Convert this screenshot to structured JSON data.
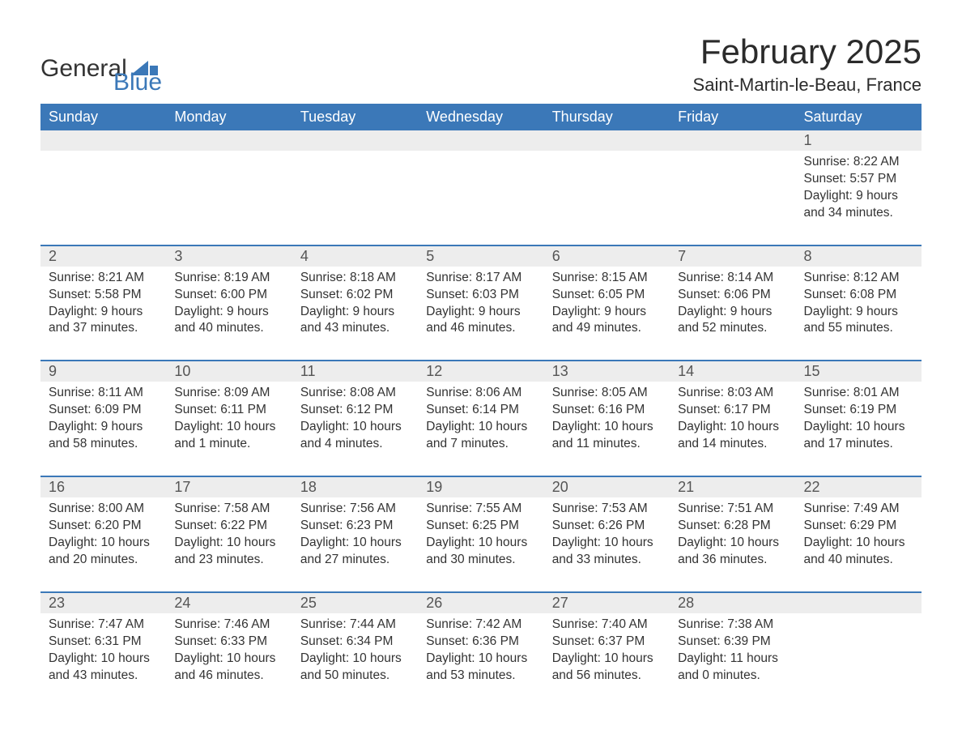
{
  "logo": {
    "text1": "General",
    "text2": "Blue"
  },
  "title": "February 2025",
  "location": "Saint-Martin-le-Beau, France",
  "colors": {
    "header_bg": "#3b78b8",
    "header_text": "#ffffff",
    "daynum_bg": "#ededed",
    "row_divider": "#3b78b8",
    "text": "#333333",
    "background": "#ffffff"
  },
  "typography": {
    "title_fontsize": 42,
    "location_fontsize": 22,
    "header_fontsize": 18,
    "daynum_fontsize": 18,
    "body_fontsize": 15.5
  },
  "layout": {
    "columns": 7,
    "rows": 5,
    "start_day_index": 6
  },
  "day_headers": [
    "Sunday",
    "Monday",
    "Tuesday",
    "Wednesday",
    "Thursday",
    "Friday",
    "Saturday"
  ],
  "weeks": [
    [
      null,
      null,
      null,
      null,
      null,
      null,
      {
        "n": "1",
        "sunrise": "8:22 AM",
        "sunset": "5:57 PM",
        "daylight": "9 hours and 34 minutes."
      }
    ],
    [
      {
        "n": "2",
        "sunrise": "8:21 AM",
        "sunset": "5:58 PM",
        "daylight": "9 hours and 37 minutes."
      },
      {
        "n": "3",
        "sunrise": "8:19 AM",
        "sunset": "6:00 PM",
        "daylight": "9 hours and 40 minutes."
      },
      {
        "n": "4",
        "sunrise": "8:18 AM",
        "sunset": "6:02 PM",
        "daylight": "9 hours and 43 minutes."
      },
      {
        "n": "5",
        "sunrise": "8:17 AM",
        "sunset": "6:03 PM",
        "daylight": "9 hours and 46 minutes."
      },
      {
        "n": "6",
        "sunrise": "8:15 AM",
        "sunset": "6:05 PM",
        "daylight": "9 hours and 49 minutes."
      },
      {
        "n": "7",
        "sunrise": "8:14 AM",
        "sunset": "6:06 PM",
        "daylight": "9 hours and 52 minutes."
      },
      {
        "n": "8",
        "sunrise": "8:12 AM",
        "sunset": "6:08 PM",
        "daylight": "9 hours and 55 minutes."
      }
    ],
    [
      {
        "n": "9",
        "sunrise": "8:11 AM",
        "sunset": "6:09 PM",
        "daylight": "9 hours and 58 minutes."
      },
      {
        "n": "10",
        "sunrise": "8:09 AM",
        "sunset": "6:11 PM",
        "daylight": "10 hours and 1 minute."
      },
      {
        "n": "11",
        "sunrise": "8:08 AM",
        "sunset": "6:12 PM",
        "daylight": "10 hours and 4 minutes."
      },
      {
        "n": "12",
        "sunrise": "8:06 AM",
        "sunset": "6:14 PM",
        "daylight": "10 hours and 7 minutes."
      },
      {
        "n": "13",
        "sunrise": "8:05 AM",
        "sunset": "6:16 PM",
        "daylight": "10 hours and 11 minutes."
      },
      {
        "n": "14",
        "sunrise": "8:03 AM",
        "sunset": "6:17 PM",
        "daylight": "10 hours and 14 minutes."
      },
      {
        "n": "15",
        "sunrise": "8:01 AM",
        "sunset": "6:19 PM",
        "daylight": "10 hours and 17 minutes."
      }
    ],
    [
      {
        "n": "16",
        "sunrise": "8:00 AM",
        "sunset": "6:20 PM",
        "daylight": "10 hours and 20 minutes."
      },
      {
        "n": "17",
        "sunrise": "7:58 AM",
        "sunset": "6:22 PM",
        "daylight": "10 hours and 23 minutes."
      },
      {
        "n": "18",
        "sunrise": "7:56 AM",
        "sunset": "6:23 PM",
        "daylight": "10 hours and 27 minutes."
      },
      {
        "n": "19",
        "sunrise": "7:55 AM",
        "sunset": "6:25 PM",
        "daylight": "10 hours and 30 minutes."
      },
      {
        "n": "20",
        "sunrise": "7:53 AM",
        "sunset": "6:26 PM",
        "daylight": "10 hours and 33 minutes."
      },
      {
        "n": "21",
        "sunrise": "7:51 AM",
        "sunset": "6:28 PM",
        "daylight": "10 hours and 36 minutes."
      },
      {
        "n": "22",
        "sunrise": "7:49 AM",
        "sunset": "6:29 PM",
        "daylight": "10 hours and 40 minutes."
      }
    ],
    [
      {
        "n": "23",
        "sunrise": "7:47 AM",
        "sunset": "6:31 PM",
        "daylight": "10 hours and 43 minutes."
      },
      {
        "n": "24",
        "sunrise": "7:46 AM",
        "sunset": "6:33 PM",
        "daylight": "10 hours and 46 minutes."
      },
      {
        "n": "25",
        "sunrise": "7:44 AM",
        "sunset": "6:34 PM",
        "daylight": "10 hours and 50 minutes."
      },
      {
        "n": "26",
        "sunrise": "7:42 AM",
        "sunset": "6:36 PM",
        "daylight": "10 hours and 53 minutes."
      },
      {
        "n": "27",
        "sunrise": "7:40 AM",
        "sunset": "6:37 PM",
        "daylight": "10 hours and 56 minutes."
      },
      {
        "n": "28",
        "sunrise": "7:38 AM",
        "sunset": "6:39 PM",
        "daylight": "11 hours and 0 minutes."
      },
      null
    ]
  ],
  "labels": {
    "sunrise": "Sunrise: ",
    "sunset": "Sunset: ",
    "daylight": "Daylight: "
  }
}
